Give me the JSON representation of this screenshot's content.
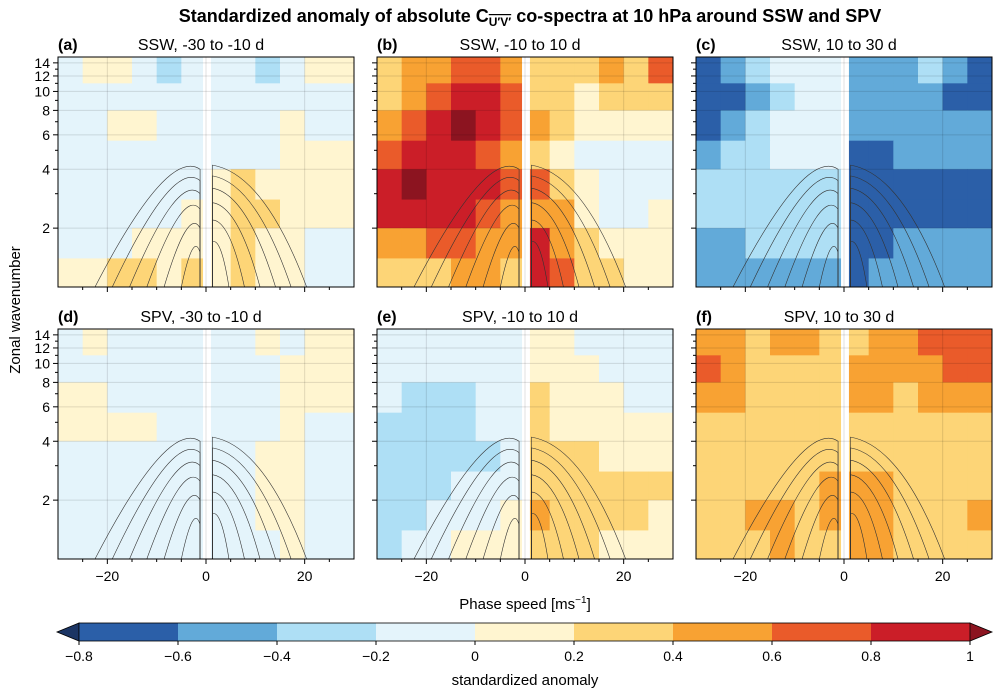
{
  "chart_data": {
    "type": "heatmap",
    "title_prefix": "Standardized anomaly of absolute C",
    "title_subscript": "U′V′",
    "title_suffix": " co-spectra at 10 hPa around SSW and SPV",
    "xlabel": "Phase speed [ms",
    "xlabel_sup": "−1",
    "xlabel_end": "]",
    "ylabel": "Zonal wavenumber",
    "xlim": [
      -30,
      30
    ],
    "ylim": [
      1,
      15
    ],
    "yscale": "log",
    "grid": true,
    "xticks": [
      -20,
      0,
      20
    ],
    "xtick_labels": [
      "−20",
      "0",
      "20"
    ],
    "yticks": [
      2,
      4,
      6,
      8,
      10,
      12,
      14
    ],
    "ytick_labels": [
      "2",
      "4",
      "6",
      "8",
      "10",
      "12",
      "14"
    ],
    "x_centers": [
      -27.5,
      -22.5,
      -17.5,
      -12.5,
      -7.5,
      -2.5,
      2.5,
      7.5,
      12.5,
      17.5,
      22.5,
      27.5
    ],
    "k_edges": [
      1,
      1.4,
      2,
      2.8,
      4,
      5.6,
      8,
      11,
      15
    ],
    "colorbar": {
      "label": "standardized anomaly",
      "levels": [
        -0.8,
        -0.6,
        -0.4,
        -0.2,
        0,
        0.2,
        0.4,
        0.6,
        0.8,
        1
      ],
      "tick_labels": [
        "−0.8",
        "−0.6",
        "−0.4",
        "−0.2",
        "0",
        "0.2",
        "0.4",
        "0.6",
        "0.8",
        "1"
      ],
      "colors": [
        "#1b3564",
        "#2b5fa8",
        "#62aad9",
        "#aedff5",
        "#e4f4fb",
        "#fff5d0",
        "#fdd577",
        "#f8a233",
        "#ea5b2a",
        "#cb1e28",
        "#8c1420"
      ],
      "extend": "both"
    },
    "panels": [
      {
        "label": "(a)",
        "title": "SSW, -30 to -10 d",
        "values": [
          [
            -0.1,
            0.1,
            0.1,
            -0.1,
            -0.3,
            -0.1,
            -0.1,
            -0.1,
            -0.3,
            -0.1,
            0.1,
            0.1
          ],
          [
            -0.1,
            -0.1,
            -0.1,
            -0.1,
            -0.1,
            -0.1,
            -0.1,
            -0.1,
            -0.1,
            -0.1,
            -0.1,
            -0.1
          ],
          [
            -0.1,
            -0.1,
            0.1,
            0.1,
            -0.1,
            -0.1,
            -0.1,
            -0.1,
            -0.1,
            0.1,
            -0.1,
            -0.1
          ],
          [
            -0.1,
            -0.1,
            -0.1,
            -0.1,
            -0.1,
            -0.1,
            -0.1,
            -0.1,
            -0.1,
            0.1,
            0.1,
            0.1
          ],
          [
            -0.1,
            -0.1,
            -0.1,
            -0.1,
            -0.1,
            -0.1,
            0.1,
            0.3,
            0.1,
            0.1,
            0.1,
            0.1
          ],
          [
            -0.1,
            -0.1,
            -0.1,
            -0.1,
            -0.1,
            0.1,
            0.1,
            0.3,
            0.3,
            0.1,
            0.1,
            0.1
          ],
          [
            -0.1,
            -0.1,
            -0.1,
            0.1,
            0.1,
            0.1,
            0.1,
            0.3,
            0.1,
            0.1,
            -0.1,
            -0.1
          ],
          [
            0.1,
            0.1,
            0.3,
            0.3,
            0.1,
            0.3,
            0.1,
            0.3,
            0.1,
            0.1,
            -0.1,
            -0.1
          ]
        ]
      },
      {
        "label": "(b)",
        "title": "SSW, -10 to 10 d",
        "values": [
          [
            0.3,
            0.5,
            0.5,
            0.7,
            0.7,
            0.5,
            0.3,
            0.3,
            0.3,
            0.5,
            0.3,
            0.7
          ],
          [
            0.3,
            0.5,
            0.7,
            0.9,
            0.9,
            0.7,
            0.3,
            0.3,
            0.1,
            0.3,
            0.3,
            0.3
          ],
          [
            0.5,
            0.7,
            0.9,
            1.1,
            0.9,
            0.7,
            0.5,
            0.3,
            0.1,
            0.1,
            0.1,
            0.1
          ],
          [
            0.7,
            0.9,
            0.9,
            0.9,
            0.7,
            0.5,
            0.3,
            0.1,
            -0.1,
            -0.1,
            -0.1,
            -0.1
          ],
          [
            0.9,
            1.1,
            0.9,
            0.9,
            0.9,
            0.7,
            0.7,
            0.3,
            0.1,
            -0.1,
            -0.1,
            -0.1
          ],
          [
            0.9,
            0.9,
            0.9,
            0.9,
            0.7,
            0.5,
            0.5,
            0.5,
            0.1,
            -0.1,
            -0.1,
            0.1
          ],
          [
            0.5,
            0.5,
            0.7,
            0.7,
            0.5,
            0.5,
            0.9,
            0.5,
            0.3,
            0.1,
            0.1,
            0.1
          ],
          [
            0.3,
            0.3,
            0.3,
            0.5,
            0.5,
            0.3,
            0.9,
            0.7,
            0.3,
            0.3,
            0.1,
            0.1
          ]
        ]
      },
      {
        "label": "(c)",
        "title": "SSW, 10 to 30 d",
        "values": [
          [
            -0.7,
            -0.5,
            -0.3,
            -0.1,
            -0.1,
            -0.1,
            -0.5,
            -0.5,
            -0.5,
            -0.3,
            -0.5,
            -0.7
          ],
          [
            -0.7,
            -0.7,
            -0.5,
            -0.3,
            -0.1,
            -0.1,
            -0.5,
            -0.5,
            -0.5,
            -0.5,
            -0.7,
            -0.7
          ],
          [
            -0.7,
            -0.5,
            -0.3,
            -0.1,
            -0.1,
            -0.1,
            -0.5,
            -0.5,
            -0.5,
            -0.5,
            -0.5,
            -0.5
          ],
          [
            -0.5,
            -0.3,
            -0.3,
            -0.1,
            -0.1,
            -0.1,
            -0.7,
            -0.7,
            -0.5,
            -0.5,
            -0.5,
            -0.5
          ],
          [
            -0.3,
            -0.3,
            -0.3,
            -0.3,
            -0.3,
            -0.3,
            -0.7,
            -0.7,
            -0.7,
            -0.7,
            -0.7,
            -0.7
          ],
          [
            -0.3,
            -0.3,
            -0.3,
            -0.3,
            -0.3,
            -0.3,
            -0.7,
            -0.7,
            -0.7,
            -0.7,
            -0.7,
            -0.7
          ],
          [
            -0.5,
            -0.5,
            -0.3,
            -0.3,
            -0.3,
            -0.3,
            -0.7,
            -0.7,
            -0.5,
            -0.5,
            -0.5,
            -0.5
          ],
          [
            -0.5,
            -0.5,
            -0.5,
            -0.5,
            -0.5,
            -0.5,
            -0.7,
            -0.5,
            -0.5,
            -0.5,
            -0.5,
            -0.5
          ]
        ]
      },
      {
        "label": "(d)",
        "title": "SPV, -30 to -10 d",
        "values": [
          [
            -0.1,
            0.1,
            -0.1,
            -0.1,
            -0.1,
            -0.1,
            -0.1,
            -0.1,
            0.1,
            -0.1,
            0.1,
            0.1
          ],
          [
            -0.1,
            -0.1,
            -0.1,
            -0.1,
            -0.1,
            -0.1,
            -0.1,
            -0.1,
            -0.1,
            0.1,
            0.1,
            0.1
          ],
          [
            0.1,
            0.1,
            -0.1,
            -0.1,
            -0.1,
            -0.1,
            -0.1,
            -0.1,
            -0.1,
            0.1,
            0.1,
            0.1
          ],
          [
            0.1,
            0.1,
            0.1,
            0.1,
            -0.1,
            -0.1,
            -0.1,
            -0.1,
            -0.1,
            0.1,
            -0.1,
            -0.1
          ],
          [
            -0.1,
            -0.1,
            -0.1,
            -0.1,
            -0.1,
            -0.1,
            -0.1,
            -0.1,
            0.1,
            0.1,
            -0.1,
            -0.1
          ],
          [
            -0.1,
            -0.1,
            -0.1,
            -0.1,
            -0.1,
            -0.1,
            -0.1,
            -0.1,
            0.1,
            0.1,
            -0.1,
            -0.1
          ],
          [
            -0.1,
            -0.1,
            -0.1,
            -0.1,
            -0.1,
            -0.1,
            -0.1,
            -0.1,
            0.1,
            0.1,
            -0.1,
            -0.1
          ],
          [
            -0.1,
            -0.1,
            -0.1,
            -0.1,
            -0.1,
            -0.1,
            -0.1,
            -0.1,
            -0.1,
            0.1,
            -0.1,
            -0.1
          ]
        ]
      },
      {
        "label": "(e)",
        "title": "SPV, -10 to 10 d",
        "values": [
          [
            -0.1,
            -0.1,
            -0.1,
            -0.1,
            -0.1,
            -0.1,
            0.1,
            0.1,
            -0.1,
            -0.1,
            -0.1,
            -0.1
          ],
          [
            -0.1,
            -0.1,
            -0.1,
            -0.1,
            -0.1,
            -0.1,
            0.1,
            0.1,
            0.1,
            -0.1,
            -0.1,
            -0.1
          ],
          [
            -0.1,
            -0.3,
            -0.3,
            -0.3,
            -0.1,
            -0.1,
            0.3,
            0.1,
            0.1,
            0.1,
            -0.1,
            -0.1
          ],
          [
            -0.3,
            -0.3,
            -0.3,
            -0.3,
            -0.1,
            -0.1,
            0.3,
            0.1,
            0.1,
            0.1,
            0.1,
            0.1
          ],
          [
            -0.3,
            -0.3,
            -0.3,
            -0.3,
            -0.3,
            -0.1,
            0.3,
            0.3,
            0.3,
            0.1,
            0.1,
            0.1
          ],
          [
            -0.3,
            -0.3,
            -0.3,
            -0.1,
            -0.1,
            -0.1,
            0.3,
            0.3,
            0.3,
            0.3,
            0.3,
            0.3
          ],
          [
            -0.3,
            -0.3,
            -0.1,
            -0.1,
            -0.1,
            0.1,
            0.5,
            0.3,
            0.3,
            0.3,
            0.3,
            0.1
          ],
          [
            -0.3,
            -0.1,
            -0.1,
            0.1,
            0.1,
            0.1,
            0.3,
            0.3,
            0.3,
            0.1,
            0.1,
            0.1
          ]
        ]
      },
      {
        "label": "(f)",
        "title": "SPV, 10 to 30 d",
        "values": [
          [
            0.5,
            0.5,
            0.3,
            0.5,
            0.5,
            0.3,
            0.3,
            0.5,
            0.5,
            0.7,
            0.7,
            0.7
          ],
          [
            0.7,
            0.5,
            0.3,
            0.3,
            0.3,
            0.3,
            0.5,
            0.5,
            0.5,
            0.5,
            0.7,
            0.7
          ],
          [
            0.5,
            0.5,
            0.3,
            0.3,
            0.3,
            0.3,
            0.5,
            0.5,
            0.3,
            0.5,
            0.5,
            0.5
          ],
          [
            0.3,
            0.3,
            0.3,
            0.3,
            0.3,
            0.3,
            0.3,
            0.3,
            0.3,
            0.3,
            0.3,
            0.3
          ],
          [
            0.3,
            0.3,
            0.3,
            0.3,
            0.3,
            0.3,
            0.3,
            0.3,
            0.3,
            0.3,
            0.3,
            0.3
          ],
          [
            0.3,
            0.3,
            0.3,
            0.3,
            0.3,
            0.5,
            0.5,
            0.5,
            0.3,
            0.3,
            0.3,
            0.3
          ],
          [
            0.3,
            0.3,
            0.5,
            0.5,
            0.3,
            0.5,
            0.5,
            0.5,
            0.3,
            0.3,
            0.3,
            0.5
          ],
          [
            0.3,
            0.3,
            0.3,
            0.5,
            0.3,
            0.3,
            0.5,
            0.5,
            0.3,
            0.3,
            0.3,
            0.3
          ]
        ]
      }
    ]
  }
}
